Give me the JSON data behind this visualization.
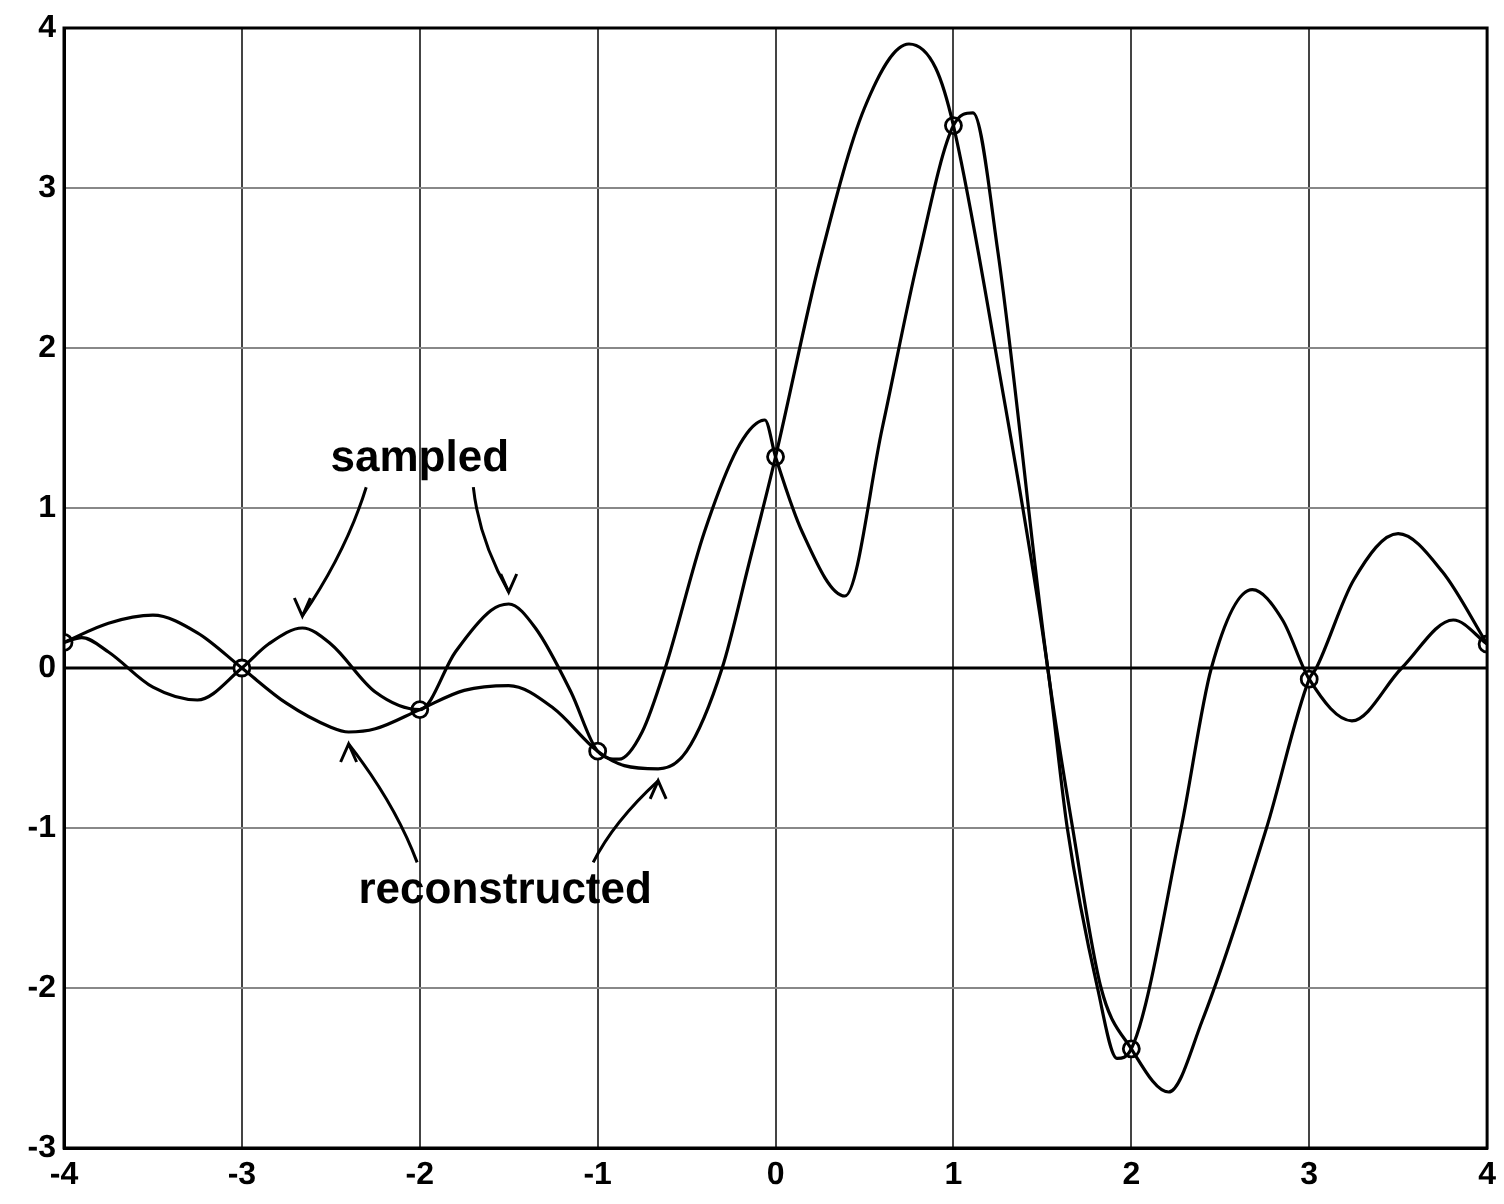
{
  "chart_data": {
    "type": "line",
    "xlim": [
      -4,
      4
    ],
    "ylim": [
      -3,
      4
    ],
    "xticks": [
      -4,
      -3,
      -2,
      -1,
      0,
      1,
      2,
      3,
      4
    ],
    "yticks": [
      -3,
      -2,
      -1,
      0,
      1,
      2,
      3,
      4
    ],
    "grid": true,
    "line_style": "solid",
    "marker": "none",
    "series": [
      {
        "color": "#000000",
        "x": [
          -4,
          -3.9,
          -3.75,
          -3.5,
          -3.25,
          -3,
          -2.85,
          -2.66,
          -2.5,
          -2.25,
          -2,
          -1.8,
          -1.6,
          -1.5,
          -1.35,
          -1.15,
          -1,
          -0.88,
          -0.75,
          -0.62,
          -0.4,
          -0.2,
          -0.06,
          0,
          0.15,
          0.39,
          0.6,
          0.8,
          1,
          1.11,
          1.25,
          1.53,
          1.67,
          1.83,
          2,
          2.21,
          2.4,
          2.76,
          3,
          3.04,
          3.25,
          3.5,
          3.75,
          4
        ],
        "values": [
          0.16,
          0.19,
          0.1,
          -0.12,
          -0.2,
          0,
          0.15,
          0.25,
          0.15,
          -0.15,
          -0.26,
          0.1,
          0.36,
          0.4,
          0.25,
          -0.15,
          -0.52,
          -0.57,
          -0.4,
          0,
          0.85,
          1.4,
          1.55,
          1.32,
          0.85,
          0.45,
          1.5,
          2.55,
          3.39,
          3.47,
          2.6,
          0,
          -1,
          -2,
          -2.38,
          -2.65,
          -2.2,
          -1,
          -0.07,
          0,
          0.55,
          0.84,
          0.6,
          0.15
        ]
      },
      {
        "color": "#000000",
        "x": [
          -4,
          -3.75,
          -3.5,
          -3.25,
          -3,
          -2.75,
          -2.5,
          -2.4,
          -2.25,
          -2,
          -1.75,
          -1.5,
          -1.25,
          -1,
          -0.85,
          -0.66,
          -0.5,
          -0.3,
          -0.15,
          0,
          0.25,
          0.5,
          0.75,
          0.9,
          1,
          1.25,
          1.53,
          1.64,
          1.81,
          1.92,
          2,
          2.28,
          2.45,
          2.68,
          2.85,
          3,
          3.24,
          3.52,
          3.81,
          4
        ],
        "values": [
          0.16,
          0.28,
          0.33,
          0.22,
          0,
          -0.22,
          -0.37,
          -0.4,
          -0.38,
          -0.26,
          -0.14,
          -0.11,
          -0.25,
          -0.52,
          -0.61,
          -0.63,
          -0.52,
          0,
          0.65,
          1.32,
          2.55,
          3.5,
          3.9,
          3.75,
          3.39,
          1.9,
          0,
          -1,
          -2,
          -2.44,
          -2.38,
          -1,
          0,
          0.49,
          0.3,
          -0.07,
          -0.33,
          0,
          0.3,
          0.15
        ]
      },
      {
        "type": "scatter",
        "marker": "circle",
        "color": "#000000",
        "x": [
          -4,
          -3,
          -2,
          -1,
          0,
          1,
          2,
          3,
          4
        ],
        "values": [
          0.16,
          0,
          -0.26,
          -0.52,
          1.32,
          3.39,
          -2.38,
          -0.07,
          0.15
        ]
      }
    ],
    "ref_lines": [
      {
        "axis": "y",
        "value": 0,
        "color": "#000000"
      }
    ],
    "annotations": [
      "sampled",
      "reconstructed"
    ]
  }
}
